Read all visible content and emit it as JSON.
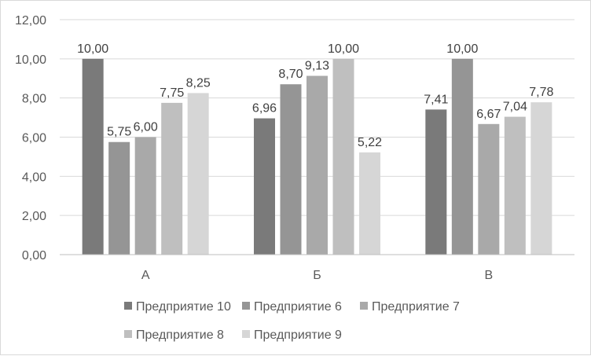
{
  "chart_data": {
    "type": "bar",
    "title": "",
    "xlabel": "",
    "ylabel": "",
    "ylim": [
      0,
      12
    ],
    "ytick_step": 2,
    "ytick_labels": [
      "0,00",
      "2,00",
      "4,00",
      "6,00",
      "8,00",
      "10,00",
      "12,00"
    ],
    "categories": [
      "А",
      "Б",
      "В"
    ],
    "grid": true,
    "legend_position": "bottom",
    "series": [
      {
        "name": "Предприятие 10",
        "color": "#7a7a7a",
        "values": [
          10.0,
          6.96,
          7.41
        ],
        "labels": [
          "10,00",
          "6,96",
          "7,41"
        ]
      },
      {
        "name": "Предприятие 6",
        "color": "#959595",
        "values": [
          5.75,
          8.7,
          10.0
        ],
        "labels": [
          "5,75",
          "8,70",
          "10,00"
        ]
      },
      {
        "name": "Предприятие 7",
        "color": "#a9a9a9",
        "values": [
          6.0,
          9.13,
          6.67
        ],
        "labels": [
          "6,00",
          "9,13",
          "6,67"
        ]
      },
      {
        "name": "Предприятие 8",
        "color": "#bfbfbf",
        "values": [
          7.75,
          10.0,
          7.04
        ],
        "labels": [
          "7,75",
          "10,00",
          "7,04"
        ]
      },
      {
        "name": "Предприятие 9",
        "color": "#d6d6d6",
        "values": [
          8.25,
          5.22,
          7.78
        ],
        "labels": [
          "8,25",
          "5,22",
          "7,78"
        ]
      }
    ]
  }
}
